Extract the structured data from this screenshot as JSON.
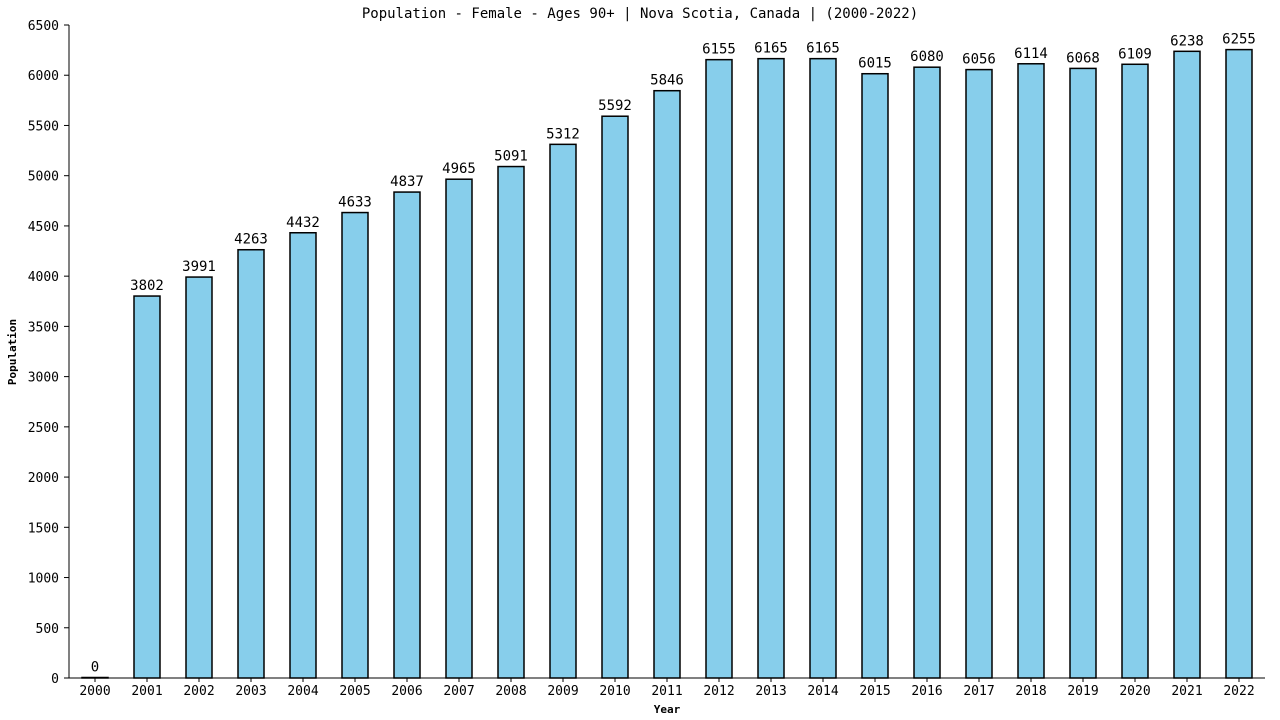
{
  "chart_data": {
    "type": "bar",
    "title": "Population - Female - Ages 90+ | Nova Scotia, Canada |  (2000-2022)",
    "xlabel": "Year",
    "ylabel": "Population",
    "categories": [
      "2000",
      "2001",
      "2002",
      "2003",
      "2004",
      "2005",
      "2006",
      "2007",
      "2008",
      "2009",
      "2010",
      "2011",
      "2012",
      "2013",
      "2014",
      "2015",
      "2016",
      "2017",
      "2018",
      "2019",
      "2020",
      "2021",
      "2022"
    ],
    "values": [
      0,
      3802,
      3991,
      4263,
      4432,
      4633,
      4837,
      4965,
      5091,
      5312,
      5592,
      5846,
      6155,
      6165,
      6165,
      6015,
      6080,
      6056,
      6114,
      6068,
      6109,
      6238,
      6255
    ],
    "data_labels": [
      "0",
      "3802",
      "3991",
      "4263",
      "4432",
      "4633",
      "4837",
      "4965",
      "5091",
      "5312",
      "5592",
      "5846",
      "6155",
      "6165",
      "6165",
      "6015",
      "6080",
      "6056",
      "6114",
      "6068",
      "6109",
      "6238",
      "6255"
    ],
    "ylim": [
      0,
      6500
    ],
    "yticks": [
      0,
      500,
      1000,
      1500,
      2000,
      2500,
      3000,
      3500,
      4000,
      4500,
      5000,
      5500,
      6000,
      6500
    ],
    "ytick_labels": [
      "0",
      "500",
      "1000",
      "1500",
      "2000",
      "2500",
      "3000",
      "3500",
      "4000",
      "4500",
      "5000",
      "5500",
      "6000",
      "6500"
    ],
    "grid": false,
    "legend": "none",
    "bar_color": "#87ceeb"
  }
}
